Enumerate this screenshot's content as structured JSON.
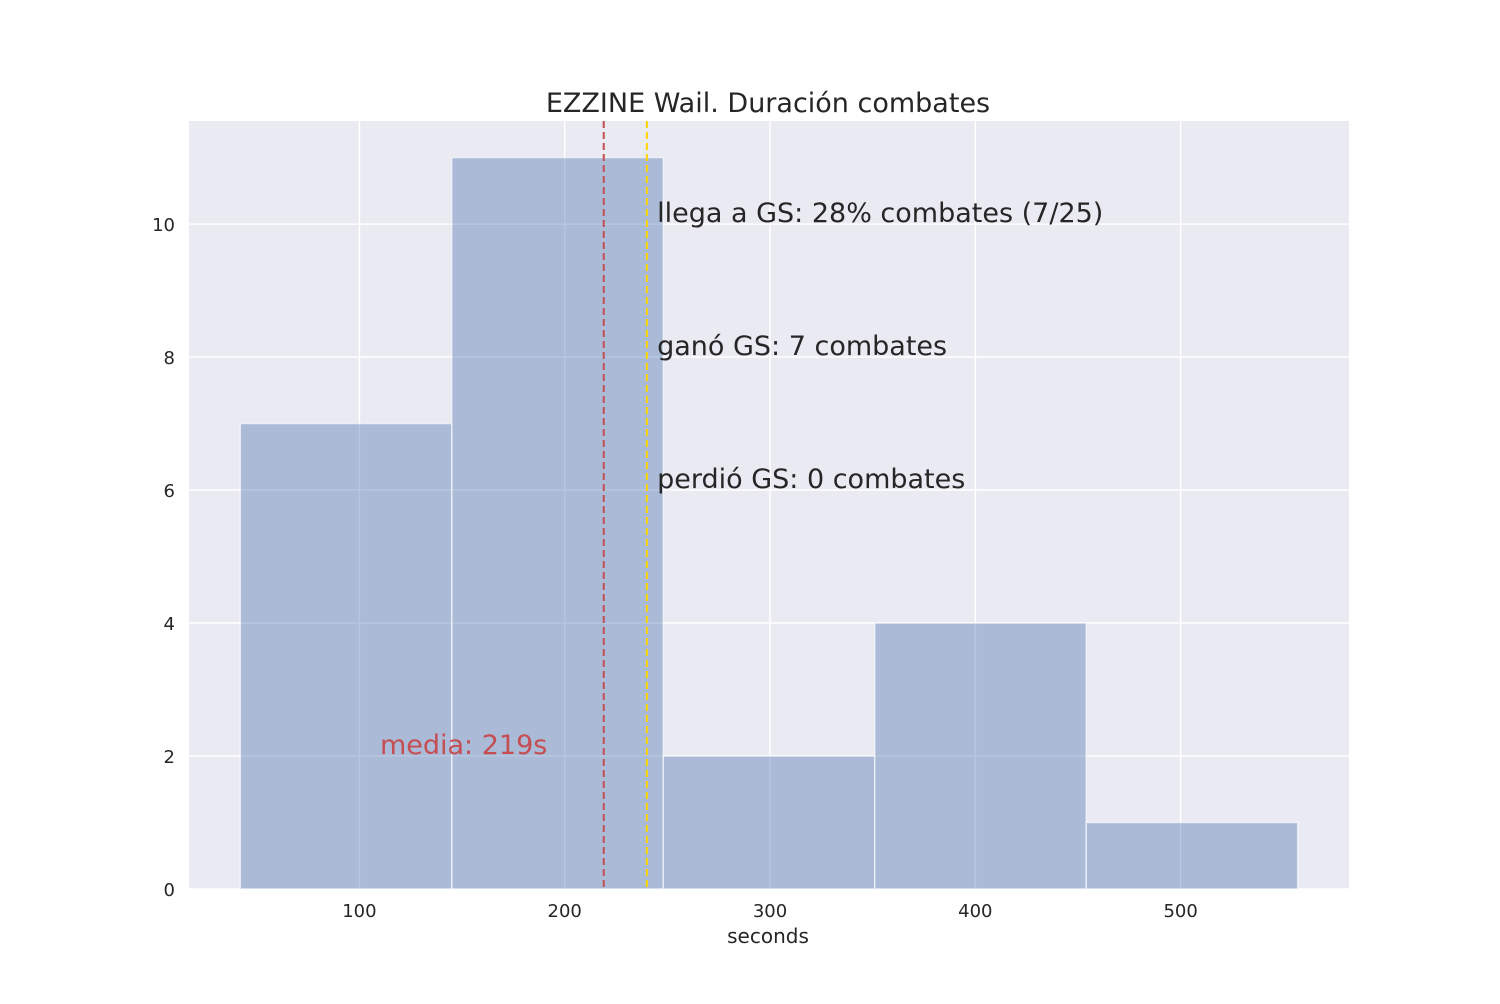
{
  "chart_data": {
    "type": "bar",
    "subtype": "histogram",
    "title": "EZZINE Wail. Duración combates",
    "xlabel": "seconds",
    "ylabel": "",
    "bins": [
      {
        "x0": 42,
        "x1": 145,
        "count": 7
      },
      {
        "x0": 145,
        "x1": 248,
        "count": 11
      },
      {
        "x0": 248,
        "x1": 351,
        "count": 2
      },
      {
        "x0": 351,
        "x1": 454,
        "count": 4
      },
      {
        "x0": 454,
        "x1": 557,
        "count": 1
      }
    ],
    "xlim": [
      17,
      582
    ],
    "ylim": [
      0,
      11.55
    ],
    "xticks": [
      100,
      200,
      300,
      400,
      500
    ],
    "yticks": [
      0,
      2,
      4,
      6,
      8,
      10
    ],
    "grid": true,
    "vlines": [
      {
        "x": 219,
        "color": "#c44e52",
        "style": "dashed"
      },
      {
        "x": 240,
        "color": "#ffd400",
        "style": "dashed"
      }
    ],
    "annotations": [
      {
        "text": "llega a GS: 28% combates (7/25)",
        "x": 245,
        "y": 10,
        "color": "#262626"
      },
      {
        "text": "ganó GS: 7 combates",
        "x": 245,
        "y": 8,
        "color": "#262626"
      },
      {
        "text": "perdió GS: 0 combates",
        "x": 245,
        "y": 6,
        "color": "#262626"
      },
      {
        "text": "media: 219s",
        "x": 110,
        "y": 2,
        "color": "#c44e52"
      }
    ],
    "colors": {
      "bar": "#4c72b0",
      "background": "#eaeaf2",
      "grid": "#ffffff",
      "text": "#262626"
    }
  }
}
